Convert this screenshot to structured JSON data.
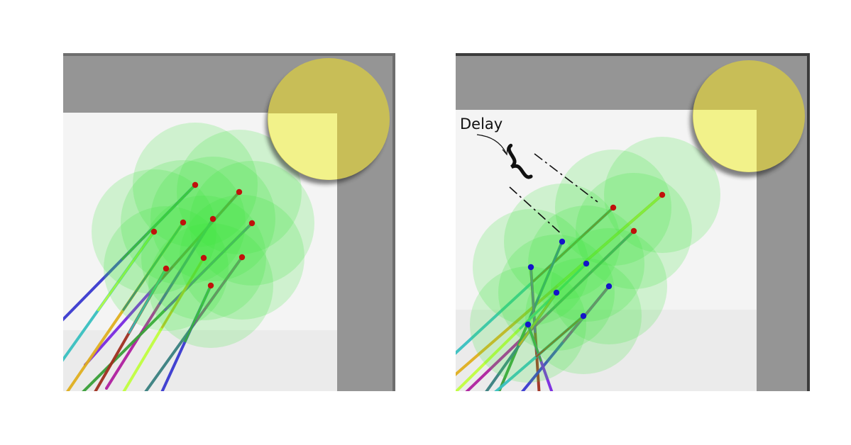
{
  "annotation": {
    "label": "Delay"
  },
  "colors": {
    "wall": "#959595",
    "floor": "#ebebeb",
    "floor_corner": "#f7f7f7",
    "target_zone": "#c8be57",
    "target_highlight": "#f2f28a",
    "sensor_range": "#3ee63e",
    "robot_position": "#c0120c",
    "delayed_position": "#1515c8"
  },
  "trail_colors": [
    "#3a3ad0",
    "#7a2ae0",
    "#39c0c0",
    "#e0b020",
    "#b020a0",
    "#3aa03a",
    "#a03020",
    "#c0ff40",
    "#3a8080"
  ],
  "icons": {
    "brace": "curly-brace-icon",
    "pointer": "curved-arrow-icon"
  }
}
